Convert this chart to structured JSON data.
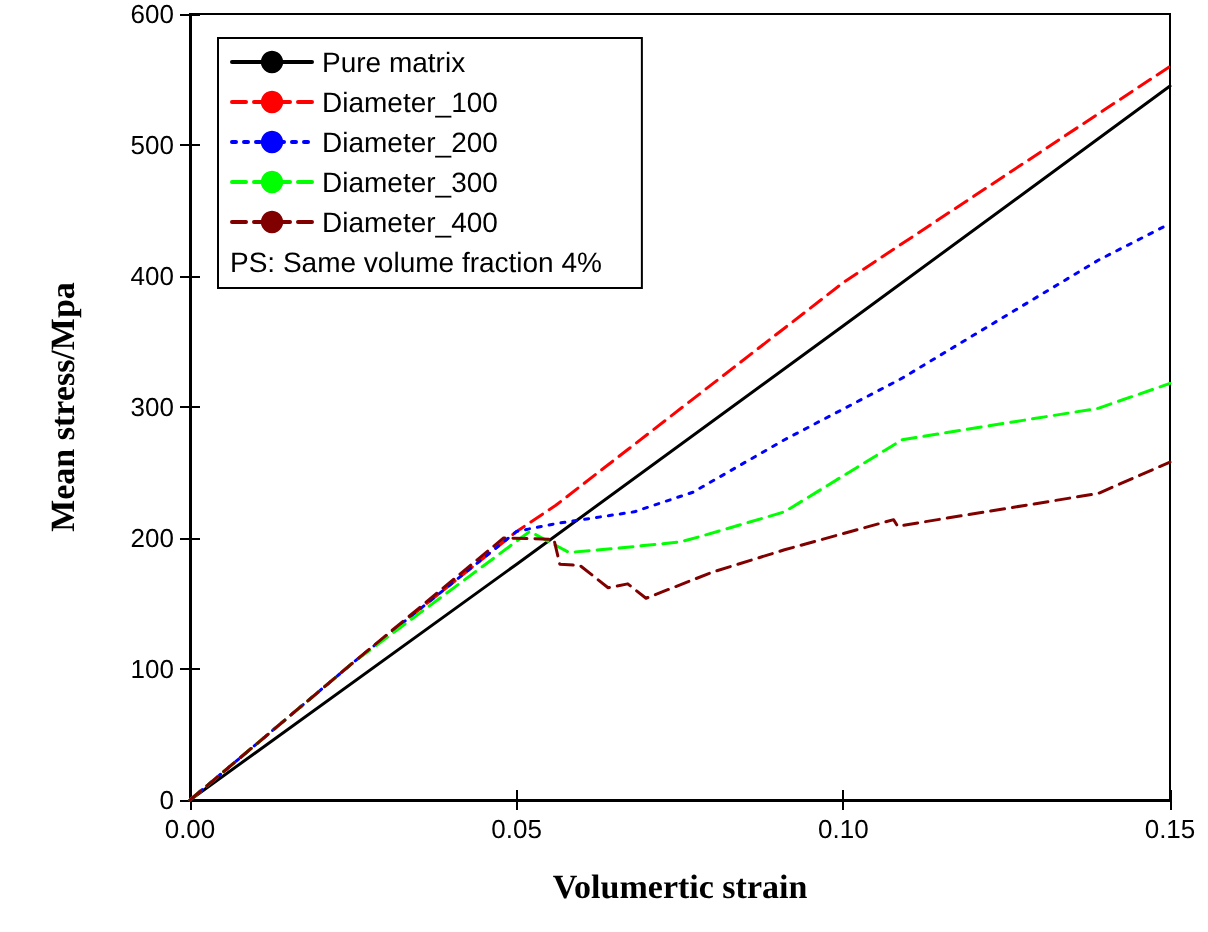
{
  "chart_data": {
    "type": "line",
    "xlabel": "Volumertic strain",
    "ylabel": "Mean stress/Mpa",
    "xlim": [
      0,
      0.15
    ],
    "xticks": [
      {
        "value": 0,
        "label": "0.00"
      },
      {
        "value": 0.05,
        "label": "0.05"
      },
      {
        "value": 0.1,
        "label": "0.10"
      },
      {
        "value": 0.15,
        "label": "0.15"
      }
    ],
    "ylim": [
      0,
      600
    ],
    "yticks": [
      0,
      100,
      200,
      300,
      400,
      500,
      600
    ],
    "grid": false,
    "legend": "top left",
    "marker": "none",
    "annotations": [
      "PS: Same volume fraction 4%"
    ],
    "series": [
      {
        "name": "Pure matrix",
        "color": "#000000",
        "line_style": "solid",
        "x": [
          0,
          0.05,
          0.1,
          0.15
        ],
        "values": [
          0,
          180,
          362,
          545
        ]
      },
      {
        "name": "Diameter_100",
        "color": "#ff0000",
        "line_style": "dashed",
        "x": [
          0,
          0.025,
          0.05,
          0.056,
          0.1,
          0.15
        ],
        "values": [
          0,
          105,
          205,
          225,
          395,
          560
        ]
      },
      {
        "name": "Diameter_200",
        "color": "#0000ff",
        "line_style": "dotted",
        "x": [
          0,
          0.025,
          0.05,
          0.056,
          0.068,
          0.077,
          0.091,
          0.109,
          0.139,
          0.15
        ],
        "values": [
          0,
          105,
          205,
          211,
          220,
          235,
          275,
          322,
          412,
          440
        ]
      },
      {
        "name": "Diameter_300",
        "color": "#00ff00",
        "line_style": "dashed",
        "x": [
          0,
          0.025,
          0.052,
          0.058,
          0.065,
          0.075,
          0.078,
          0.091,
          0.109,
          0.139,
          0.15
        ],
        "values": [
          0,
          105,
          205,
          189,
          192,
          197,
          201,
          220,
          275,
          299,
          318
        ]
      },
      {
        "name": "Diameter_400",
        "color": "#800000",
        "line_style": "dashed",
        "x": [
          0,
          0.025,
          0.048,
          0.0557,
          0.0566,
          0.0597,
          0.064,
          0.067,
          0.0698,
          0.08,
          0.091,
          0.1077,
          0.1083,
          0.139,
          0.15
        ],
        "values": [
          0,
          105,
          200,
          199,
          180,
          179,
          162,
          165,
          154,
          174,
          191,
          214,
          209,
          234,
          258
        ]
      }
    ]
  }
}
